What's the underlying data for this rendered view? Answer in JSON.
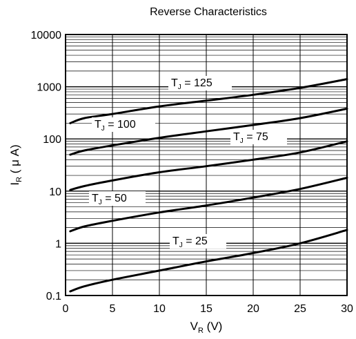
{
  "chart_data": {
    "type": "line",
    "title": "Reverse Characteristics",
    "xlabel": {
      "main": "V",
      "sub": "R",
      "unit": " (V)"
    },
    "ylabel": {
      "main": "I",
      "sub": "R",
      "unit": " ( μ A)"
    },
    "xlim": [
      0,
      30
    ],
    "ylim": [
      0.1,
      10000
    ],
    "y_scale": "log",
    "grid": true,
    "x_ticks": [
      "0",
      "5",
      "10",
      "15",
      "20",
      "25",
      "30"
    ],
    "y_ticks": [
      "0.1",
      "1",
      "10",
      "100",
      "1000",
      "10000"
    ],
    "series": [
      {
        "name": "T_J = 125",
        "label_main": "T",
        "label_sub": "J",
        "label_rest": " = 125",
        "x": [
          0.5,
          2,
          5,
          10,
          15,
          20,
          25,
          30
        ],
        "y": [
          200,
          250,
          300,
          420,
          540,
          700,
          950,
          1400
        ]
      },
      {
        "name": "T_J = 100",
        "label_main": "T",
        "label_sub": "J",
        "label_rest": " = 100",
        "x": [
          0.5,
          2,
          5,
          10,
          15,
          20,
          25,
          30
        ],
        "y": [
          50,
          60,
          75,
          105,
          140,
          185,
          250,
          380
        ]
      },
      {
        "name": "T_J = 75",
        "label_main": "T",
        "label_sub": "J",
        "label_rest": " = 75",
        "x": [
          0.5,
          2,
          5,
          10,
          15,
          20,
          25,
          30
        ],
        "y": [
          10.5,
          12.5,
          16,
          23,
          30,
          40,
          55,
          90
        ]
      },
      {
        "name": "T_J = 50",
        "label_main": "T",
        "label_sub": "J",
        "label_rest": " = 50",
        "x": [
          0.5,
          2,
          5,
          10,
          15,
          20,
          25,
          30
        ],
        "y": [
          1.7,
          2.1,
          2.7,
          3.9,
          5.3,
          7.5,
          11,
          18
        ]
      },
      {
        "name": "T_J = 25",
        "label_main": "T",
        "label_sub": "J",
        "label_rest": " = 25",
        "x": [
          0.5,
          2,
          5,
          10,
          15,
          20,
          25,
          30
        ],
        "y": [
          0.12,
          0.15,
          0.2,
          0.3,
          0.45,
          0.65,
          1.0,
          1.8
        ]
      }
    ]
  }
}
